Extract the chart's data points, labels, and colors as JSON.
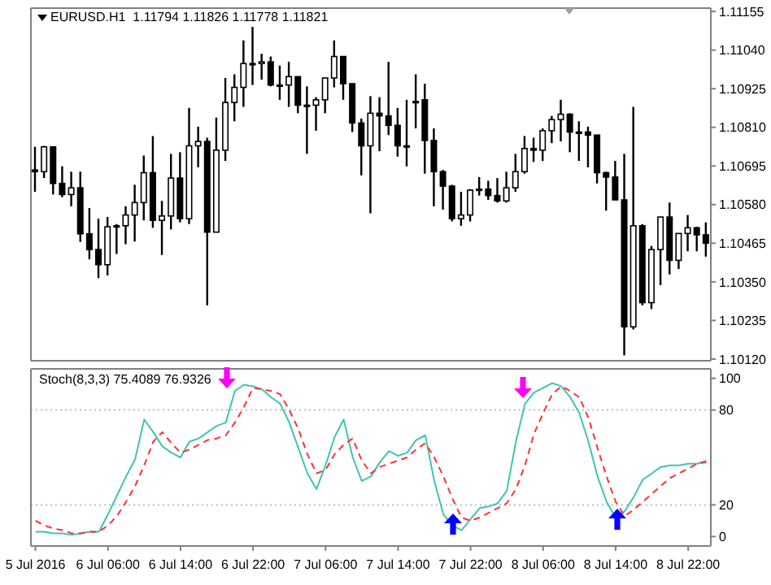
{
  "chart_data": [
    {
      "type": "candlestick",
      "title": "EURUSD.H1  1.11794 1.11826 1.11778 1.11821",
      "color": "#000000",
      "tick_labels": "y",
      "categories": [
        null,
        null,
        null,
        null,
        null,
        null,
        null,
        null,
        null,
        null,
        null,
        null,
        null,
        null,
        null,
        null,
        null,
        null,
        null,
        null,
        null,
        null,
        null,
        null,
        null,
        null,
        null,
        null,
        null,
        null,
        null,
        null,
        null,
        null,
        null,
        null,
        null,
        null,
        null,
        null,
        null,
        null,
        null,
        null,
        null,
        null,
        null,
        null,
        null,
        null,
        null,
        null,
        null,
        null,
        null,
        null,
        null,
        null,
        null,
        null,
        null,
        null,
        null,
        null,
        null,
        null,
        null,
        null,
        null,
        null,
        null,
        null,
        null,
        null,
        null
      ],
      "ohlc": [
        [
          1.10683,
          1.10752,
          1.10618,
          1.10678
        ],
        [
          1.10678,
          1.10755,
          1.10659,
          1.10752
        ],
        [
          1.10752,
          1.10752,
          1.1061,
          1.10643
        ],
        [
          1.10643,
          1.10694,
          1.10602,
          1.1061
        ],
        [
          1.1061,
          1.10678,
          1.10575,
          1.1063
        ],
        [
          1.1063,
          1.10678,
          1.10469,
          1.10493
        ],
        [
          1.10493,
          1.1057,
          1.10417,
          1.10446
        ],
        [
          1.10446,
          1.10538,
          1.10361,
          1.10401
        ],
        [
          1.10401,
          1.10543,
          1.10369,
          1.10514
        ],
        [
          1.10514,
          1.10522,
          1.10433,
          1.10517
        ],
        [
          1.10517,
          1.10575,
          1.10462,
          1.10549
        ],
        [
          1.10549,
          1.10639,
          1.1047,
          1.10586
        ],
        [
          1.10586,
          1.10726,
          1.10533,
          1.10675
        ],
        [
          1.10675,
          1.10784,
          1.10511,
          1.10533
        ],
        [
          1.10533,
          1.10591,
          1.1043,
          1.10546
        ],
        [
          1.10546,
          1.10731,
          1.10506,
          1.10659
        ],
        [
          1.10659,
          1.10736,
          1.10527,
          1.10538
        ],
        [
          1.10538,
          1.10868,
          1.10522,
          1.10755
        ],
        [
          1.10755,
          1.10812,
          1.10691,
          1.10768
        ],
        [
          1.10768,
          1.10779,
          1.1028,
          1.10498
        ],
        [
          1.10498,
          1.10839,
          1.10498,
          1.10742
        ],
        [
          1.10742,
          1.10957,
          1.1071,
          1.10884
        ],
        [
          1.10884,
          1.10968,
          1.10828,
          1.10929
        ],
        [
          1.10929,
          1.11069,
          1.10871,
          1.11
        ],
        [
          1.11,
          1.11109,
          1.10936,
          1.11
        ],
        [
          1.11,
          1.11029,
          1.10952,
          1.11005
        ],
        [
          1.11005,
          1.11021,
          1.10932,
          1.10936
        ],
        [
          1.10936,
          1.10994,
          1.10892,
          1.10936
        ],
        [
          1.10936,
          1.11005,
          1.10871,
          1.10961
        ],
        [
          1.10961,
          1.10961,
          1.10852,
          1.10876
        ],
        [
          1.10876,
          1.10932,
          1.10731,
          1.10876
        ],
        [
          1.10876,
          1.109,
          1.108,
          1.10892
        ],
        [
          1.10892,
          1.10957,
          1.10852,
          1.10957
        ],
        [
          1.10957,
          1.11069,
          1.10929,
          1.11021
        ],
        [
          1.11021,
          1.11021,
          1.10892,
          1.1094
        ],
        [
          1.1094,
          1.1094,
          1.10796,
          1.10823
        ],
        [
          1.10823,
          1.10836,
          1.10667,
          1.10755
        ],
        [
          1.10755,
          1.10903,
          1.10554,
          1.10852
        ],
        [
          1.10852,
          1.109,
          1.10739,
          1.10844
        ],
        [
          1.10844,
          1.11005,
          1.10787,
          1.10816
        ],
        [
          1.10816,
          1.10868,
          1.10723,
          1.10755
        ],
        [
          1.10755,
          1.10892,
          1.10694,
          1.10755
        ],
        [
          1.10887,
          1.10968,
          1.10807,
          1.10887
        ],
        [
          1.10892,
          1.1094,
          1.10672,
          1.10771
        ],
        [
          1.10771,
          1.10807,
          1.10575,
          1.10678
        ],
        [
          1.10678,
          1.10683,
          1.10565,
          1.10635
        ],
        [
          1.10635,
          1.10639,
          1.1053,
          1.10538
        ],
        [
          1.10538,
          1.10618,
          1.10517,
          1.10549
        ],
        [
          1.10549,
          1.10626,
          1.1053,
          1.10623
        ],
        [
          1.10623,
          1.10662,
          1.10607,
          1.10626
        ],
        [
          1.10626,
          1.10651,
          1.10594,
          1.10607
        ],
        [
          1.10607,
          1.10659,
          1.10586,
          1.10591
        ],
        [
          1.10591,
          1.10678,
          1.10586,
          1.1063
        ],
        [
          1.1063,
          1.10731,
          1.10618,
          1.10678
        ],
        [
          1.10678,
          1.10784,
          1.10672,
          1.10747
        ],
        [
          1.10747,
          1.10779,
          1.10707,
          1.10742
        ],
        [
          1.10742,
          1.10807,
          1.1071,
          1.108
        ],
        [
          1.108,
          1.10844,
          1.10763,
          1.10833
        ],
        [
          1.10833,
          1.10892,
          1.10768,
          1.10849
        ],
        [
          1.10849,
          1.10852,
          1.10736,
          1.10796
        ],
        [
          1.10796,
          1.10828,
          1.1071,
          1.10796
        ],
        [
          1.10796,
          1.10812,
          1.10691,
          1.10787
        ],
        [
          1.10787,
          1.10787,
          1.10643,
          1.10675
        ],
        [
          1.10675,
          1.10678,
          1.10562,
          1.10662
        ],
        [
          1.10662,
          1.1071,
          1.10594,
          1.10594
        ],
        [
          1.10594,
          1.10731,
          1.10131,
          1.10216
        ],
        [
          1.10216,
          1.10871,
          1.10208,
          1.10517
        ],
        [
          1.10517,
          1.10522,
          1.1028,
          1.10288
        ],
        [
          1.10288,
          1.10457,
          1.10269,
          1.10446
        ],
        [
          1.10446,
          1.10543,
          1.1034,
          1.10543
        ],
        [
          1.10543,
          1.10586,
          1.10372,
          1.10414
        ],
        [
          1.10414,
          1.10494,
          1.10388,
          1.10494
        ],
        [
          1.10494,
          1.10549,
          1.10441,
          1.10511
        ],
        [
          1.10511,
          1.10514,
          1.10441,
          1.1049
        ],
        [
          1.1049,
          1.10527,
          1.10425,
          1.10465
        ]
      ],
      "ylim": [
        1.10115,
        1.11165
      ],
      "yticks": [
        {
          "value": 1.1012,
          "label": "1.10120"
        },
        {
          "value": 1.10235,
          "label": "1.10235"
        },
        {
          "value": 1.1035,
          "label": "1.10350"
        },
        {
          "value": 1.10465,
          "label": "1.10465"
        },
        {
          "value": 1.1058,
          "label": "1.10580"
        },
        {
          "value": 1.10695,
          "label": "1.10695"
        },
        {
          "value": 1.1081,
          "label": "1.10810"
        },
        {
          "value": 1.10925,
          "label": "1.10925"
        },
        {
          "value": 1.1104,
          "label": "1.11040"
        },
        {
          "value": 1.11155,
          "label": "1.11155"
        }
      ]
    },
    {
      "type": "line",
      "title": "Stoch(8,3,3) 75.4089 76.9326",
      "categories": [
        "5 Jul 2016",
        null,
        null,
        null,
        null,
        null,
        null,
        null,
        "6 Jul 06:00",
        null,
        null,
        null,
        null,
        null,
        null,
        null,
        "6 Jul 14:00",
        null,
        null,
        null,
        null,
        null,
        null,
        null,
        "6 Jul 22:00",
        null,
        null,
        null,
        null,
        null,
        null,
        null,
        "7 Jul 06:00",
        null,
        null,
        null,
        null,
        null,
        null,
        null,
        "7 Jul 14:00",
        null,
        null,
        null,
        null,
        null,
        null,
        null,
        "7 Jul 22:00",
        null,
        null,
        null,
        null,
        null,
        null,
        null,
        "8 Jul 06:00",
        null,
        null,
        null,
        null,
        null,
        null,
        null,
        "8 Jul 14:00",
        null,
        null,
        null,
        null,
        null,
        null,
        null,
        "8 Jul 22:00",
        null,
        null
      ],
      "series": [
        {
          "color": "#40c4b0",
          "line_style": "solid",
          "values": [
            3,
            3,
            2,
            2,
            1,
            2,
            3,
            3,
            14,
            26,
            38,
            49,
            74,
            66,
            57,
            53,
            50,
            60,
            62,
            66,
            70,
            72,
            92,
            96,
            95,
            93,
            88,
            84,
            72,
            56,
            40,
            30,
            45,
            63,
            74,
            50,
            35,
            38,
            47,
            54,
            51,
            53,
            61,
            64,
            35,
            14,
            7,
            4,
            11,
            18,
            19,
            21,
            29,
            60,
            84,
            91,
            94,
            97,
            95,
            88,
            78,
            60,
            38,
            22,
            12,
            16,
            25,
            36,
            40,
            44,
            45,
            45,
            46,
            46,
            48
          ]
        },
        {
          "color": "#ff3030",
          "line_style": "dashed",
          "values": [
            10,
            7,
            5,
            4,
            2,
            2,
            3,
            3,
            7,
            13,
            22,
            32,
            45,
            60,
            66,
            59,
            53,
            55,
            58,
            61,
            62,
            64,
            72,
            82,
            94,
            93,
            92,
            90,
            80,
            68,
            52,
            40,
            42,
            52,
            58,
            62,
            48,
            40,
            44,
            46,
            48,
            50,
            55,
            59,
            50,
            38,
            24,
            12,
            10,
            12,
            15,
            18,
            21,
            30,
            45,
            65,
            78,
            90,
            95,
            92,
            88,
            75,
            56,
            38,
            22,
            13,
            17,
            22,
            27,
            32,
            37,
            40,
            43,
            46,
            47
          ]
        }
      ],
      "ylim": [
        -6,
        106
      ],
      "yticks": [
        0,
        20,
        80,
        100
      ],
      "ref_lines": [
        {
          "axis": "y",
          "value": 20,
          "color": "#c0c0c0",
          "line_style": "dotted"
        },
        {
          "axis": "y",
          "value": 80,
          "color": "#c0c0c0",
          "line_style": "dotted"
        }
      ]
    }
  ]
}
